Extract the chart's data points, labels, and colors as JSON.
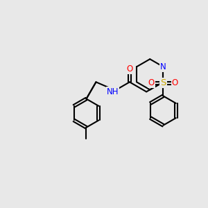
{
  "background_color": "#e8e8e8",
  "bond_color": "#000000",
  "bond_width": 1.5,
  "atom_colors": {
    "N": "#0000ff",
    "O": "#ff0000",
    "S": "#ccaa00",
    "C": "#000000",
    "H": "#444444"
  },
  "font_size_atoms": 8.5,
  "xlim": [
    0,
    10
  ],
  "ylim": [
    0,
    10
  ]
}
